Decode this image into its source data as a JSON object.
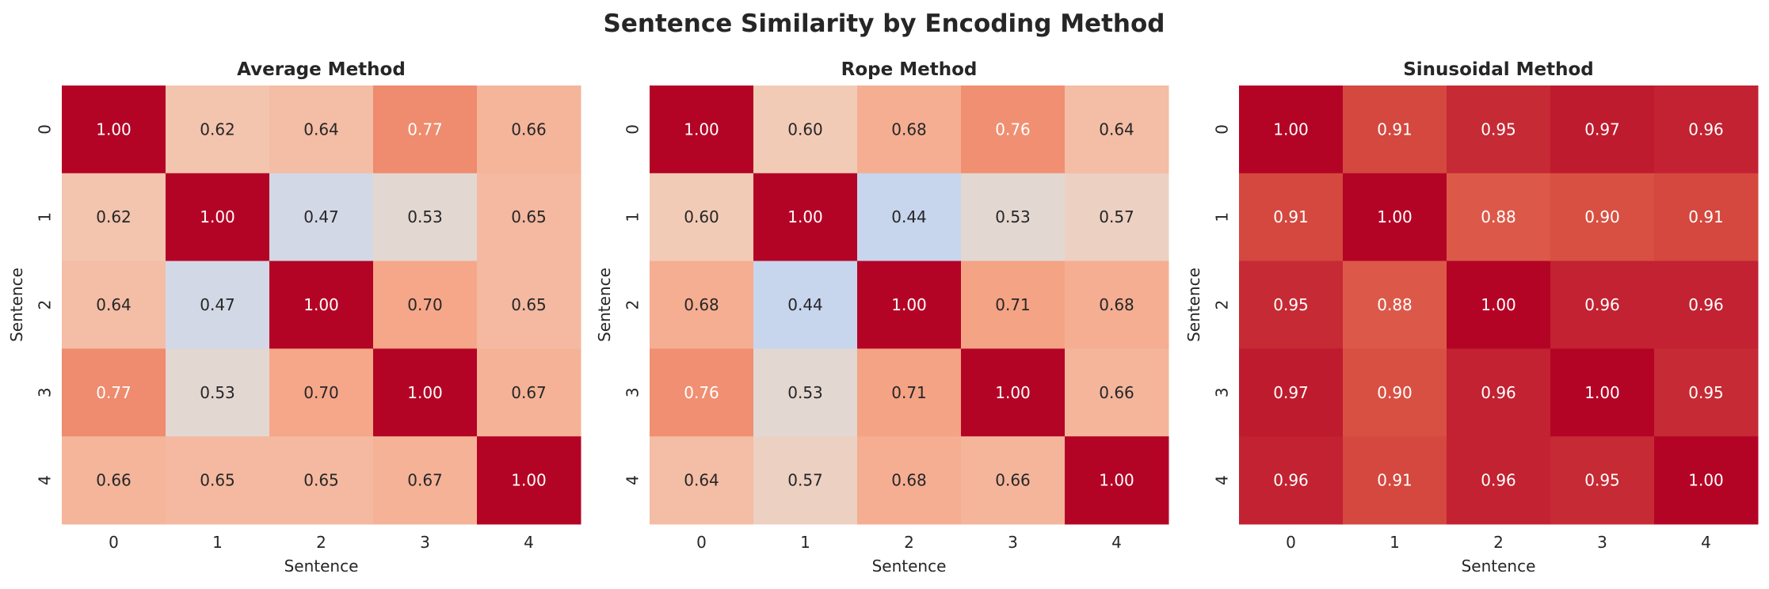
{
  "title": "Sentence Similarity by Encoding Method",
  "colormap": {
    "name": "coolwarm",
    "vmin": 0,
    "vmax": 1,
    "colorbar": false
  },
  "chart_data": [
    {
      "type": "heatmap",
      "title": "Average Method",
      "xlabel": "Sentence",
      "ylabel": "Sentence",
      "x_ticks": [
        "0",
        "1",
        "2",
        "3",
        "4"
      ],
      "y_ticks": [
        "0",
        "1",
        "2",
        "3",
        "4"
      ],
      "values": [
        [
          1.0,
          0.62,
          0.64,
          0.77,
          0.66
        ],
        [
          0.62,
          1.0,
          0.47,
          0.53,
          0.65
        ],
        [
          0.64,
          0.47,
          1.0,
          0.7,
          0.65
        ],
        [
          0.77,
          0.53,
          0.7,
          1.0,
          0.67
        ],
        [
          0.66,
          0.65,
          0.65,
          0.67,
          1.0
        ]
      ]
    },
    {
      "type": "heatmap",
      "title": "Rope Method",
      "xlabel": "Sentence",
      "ylabel": "Sentence",
      "x_ticks": [
        "0",
        "1",
        "2",
        "3",
        "4"
      ],
      "y_ticks": [
        "0",
        "1",
        "2",
        "3",
        "4"
      ],
      "values": [
        [
          1.0,
          0.6,
          0.68,
          0.76,
          0.64
        ],
        [
          0.6,
          1.0,
          0.44,
          0.53,
          0.57
        ],
        [
          0.68,
          0.44,
          1.0,
          0.71,
          0.68
        ],
        [
          0.76,
          0.53,
          0.71,
          1.0,
          0.66
        ],
        [
          0.64,
          0.57,
          0.68,
          0.66,
          1.0
        ]
      ]
    },
    {
      "type": "heatmap",
      "title": "Sinusoidal Method",
      "xlabel": "Sentence",
      "ylabel": "Sentence",
      "x_ticks": [
        "0",
        "1",
        "2",
        "3",
        "4"
      ],
      "y_ticks": [
        "0",
        "1",
        "2",
        "3",
        "4"
      ],
      "values": [
        [
          1.0,
          0.91,
          0.95,
          0.97,
          0.96
        ],
        [
          0.91,
          1.0,
          0.88,
          0.9,
          0.91
        ],
        [
          0.95,
          0.88,
          1.0,
          0.96,
          0.96
        ],
        [
          0.97,
          0.9,
          0.96,
          1.0,
          0.95
        ],
        [
          0.96,
          0.91,
          0.96,
          0.95,
          1.0
        ]
      ]
    }
  ]
}
